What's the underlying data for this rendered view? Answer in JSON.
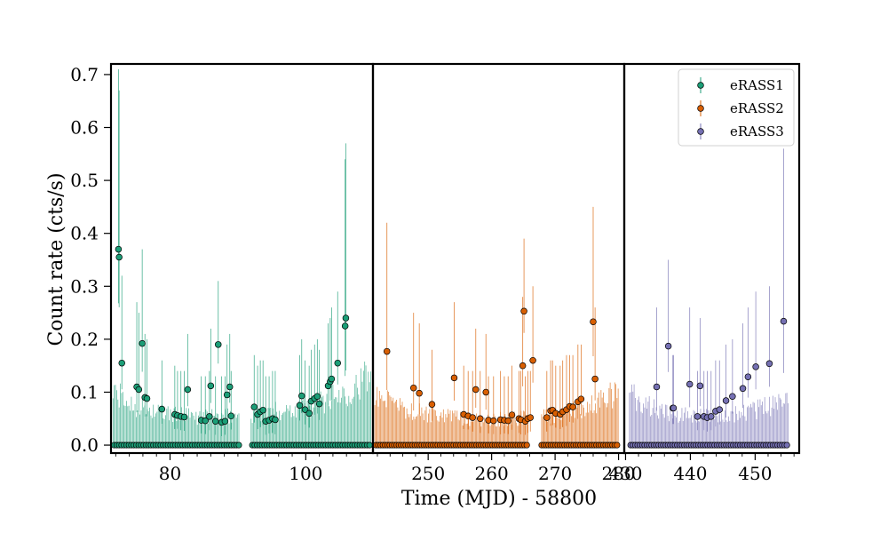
{
  "chart_data": {
    "type": "scatter",
    "title": "",
    "xlabel": "Time (MJD) - 58800",
    "ylabel": "Count rate (cts/s)",
    "ylim": [
      -0.015,
      0.72
    ],
    "yticks": [
      0.0,
      0.1,
      0.2,
      0.3,
      0.4,
      0.5,
      0.6,
      0.7
    ],
    "ytick_labels": [
      "0.0",
      "0.1",
      "0.2",
      "0.3",
      "0.4",
      "0.5",
      "0.6",
      "0.7"
    ],
    "legend": {
      "position": "top-right",
      "entries": [
        "eRASS1",
        "eRASS2",
        "eRASS3"
      ]
    },
    "panels": [
      {
        "series": "eRASS1",
        "color": "#1b9e77",
        "xlim": [
          71.3,
          109.9
        ],
        "xticks": [
          80,
          100
        ],
        "xtick_labels": [
          "80",
          "100"
        ],
        "err_env": [
          [
            72.0,
            0.125
          ],
          [
            74.0,
            0.1
          ],
          [
            77.0,
            0.085
          ],
          [
            80.0,
            0.075
          ],
          [
            83.0,
            0.07
          ],
          [
            86.0,
            0.068
          ],
          [
            89.0,
            0.07
          ],
          [
            92.0,
            0.075
          ],
          [
            95.0,
            0.08
          ],
          [
            98.0,
            0.09
          ],
          [
            101.0,
            0.1
          ],
          [
            104.0,
            0.115
          ],
          [
            107.0,
            0.14
          ],
          [
            109.0,
            0.165
          ]
        ],
        "zero_gaps": [
          [
            90.3,
            91.9
          ]
        ],
        "points": [
          [
            72.4,
            0.37,
            0.71
          ],
          [
            72.5,
            0.355,
            0.67
          ],
          [
            72.9,
            0.155,
            0.32
          ],
          [
            75.1,
            0.11,
            0.27
          ],
          [
            75.4,
            0.105,
            0.25
          ],
          [
            75.9,
            0.192,
            0.37
          ],
          [
            76.3,
            0.09,
            0.21
          ],
          [
            76.6,
            0.088,
            0.2
          ],
          [
            78.8,
            0.068,
            0.16
          ],
          [
            80.7,
            0.058,
            0.15
          ],
          [
            81.1,
            0.056,
            0.14
          ],
          [
            81.6,
            0.054,
            0.14
          ],
          [
            82.1,
            0.053,
            0.14
          ],
          [
            82.6,
            0.105,
            0.21
          ],
          [
            84.6,
            0.047,
            0.13
          ],
          [
            85.2,
            0.046,
            0.13
          ],
          [
            85.8,
            0.054,
            0.14
          ],
          [
            86.0,
            0.112,
            0.22
          ],
          [
            86.7,
            0.045,
            0.13
          ],
          [
            87.1,
            0.19,
            0.31
          ],
          [
            87.6,
            0.043,
            0.13
          ],
          [
            88.1,
            0.045,
            0.13
          ],
          [
            88.4,
            0.095,
            0.19
          ],
          [
            88.8,
            0.11,
            0.21
          ],
          [
            89.0,
            0.055,
            0.14
          ],
          [
            92.4,
            0.072,
            0.17
          ],
          [
            92.9,
            0.058,
            0.15
          ],
          [
            93.3,
            0.063,
            0.16
          ],
          [
            93.7,
            0.066,
            0.16
          ],
          [
            94.1,
            0.045,
            0.13
          ],
          [
            94.6,
            0.047,
            0.13
          ],
          [
            95.1,
            0.05,
            0.14
          ],
          [
            95.5,
            0.048,
            0.14
          ],
          [
            99.1,
            0.075,
            0.17
          ],
          [
            99.4,
            0.093,
            0.2
          ],
          [
            99.9,
            0.067,
            0.16
          ],
          [
            100.5,
            0.06,
            0.15
          ],
          [
            100.8,
            0.083,
            0.18
          ],
          [
            101.3,
            0.088,
            0.19
          ],
          [
            101.7,
            0.092,
            0.2
          ],
          [
            102.0,
            0.078,
            0.18
          ],
          [
            103.3,
            0.112,
            0.23
          ],
          [
            103.6,
            0.12,
            0.24
          ],
          [
            103.8,
            0.125,
            0.26
          ],
          [
            104.7,
            0.155,
            0.29
          ],
          [
            105.8,
            0.225,
            0.54
          ],
          [
            105.9,
            0.24,
            0.57
          ]
        ]
      },
      {
        "series": "eRASS2",
        "color": "#d95f02",
        "xlim": [
          241.3,
          280.9
        ],
        "xticks": [
          250,
          260,
          270,
          280
        ],
        "xtick_labels": [
          "250",
          "260",
          "270",
          "280"
        ],
        "err_env": [
          [
            242.0,
            0.125
          ],
          [
            244.0,
            0.1
          ],
          [
            247.0,
            0.085
          ],
          [
            250.0,
            0.075
          ],
          [
            253.0,
            0.07
          ],
          [
            256.0,
            0.065
          ],
          [
            259.0,
            0.063
          ],
          [
            262.0,
            0.063
          ],
          [
            265.0,
            0.065
          ],
          [
            268.0,
            0.07
          ],
          [
            271.0,
            0.078
          ],
          [
            274.0,
            0.09
          ],
          [
            277.0,
            0.105
          ],
          [
            279.5,
            0.125
          ]
        ],
        "zero_gaps": [
          [
            265.8,
            267.8
          ]
        ],
        "points": [
          [
            243.5,
            0.177,
            0.42
          ],
          [
            247.7,
            0.108,
            0.25
          ],
          [
            248.6,
            0.098,
            0.23
          ],
          [
            250.6,
            0.077,
            0.18
          ],
          [
            254.1,
            0.127,
            0.27
          ],
          [
            255.6,
            0.058,
            0.15
          ],
          [
            256.3,
            0.055,
            0.14
          ],
          [
            257.0,
            0.052,
            0.14
          ],
          [
            257.5,
            0.105,
            0.22
          ],
          [
            258.2,
            0.05,
            0.14
          ],
          [
            259.1,
            0.1,
            0.21
          ],
          [
            259.5,
            0.047,
            0.13
          ],
          [
            260.3,
            0.046,
            0.13
          ],
          [
            261.4,
            0.048,
            0.14
          ],
          [
            262.0,
            0.047,
            0.13
          ],
          [
            262.6,
            0.046,
            0.13
          ],
          [
            263.2,
            0.057,
            0.15
          ],
          [
            264.3,
            0.05,
            0.14
          ],
          [
            264.6,
            0.048,
            0.14
          ],
          [
            264.9,
            0.15,
            0.28
          ],
          [
            265.1,
            0.253,
            0.39
          ],
          [
            265.3,
            0.045,
            0.13
          ],
          [
            265.7,
            0.05,
            0.14
          ],
          [
            266.1,
            0.052,
            0.14
          ],
          [
            266.5,
            0.16,
            0.3
          ],
          [
            268.7,
            0.052,
            0.14
          ],
          [
            269.3,
            0.065,
            0.16
          ],
          [
            269.6,
            0.066,
            0.16
          ],
          [
            270.1,
            0.06,
            0.15
          ],
          [
            270.8,
            0.058,
            0.15
          ],
          [
            271.2,
            0.063,
            0.16
          ],
          [
            271.8,
            0.067,
            0.17
          ],
          [
            272.3,
            0.073,
            0.17
          ],
          [
            272.8,
            0.072,
            0.17
          ],
          [
            273.6,
            0.082,
            0.19
          ],
          [
            274.1,
            0.087,
            0.19
          ],
          [
            276.0,
            0.233,
            0.45
          ],
          [
            276.3,
            0.125,
            0.26
          ]
        ]
      },
      {
        "series": "eRASS3",
        "color": "#7570b3",
        "xlim": [
          429.8,
          456.8
        ],
        "xticks": [
          430,
          440,
          450
        ],
        "xtick_labels": [
          "430",
          "440",
          "450"
        ],
        "err_env": [
          [
            431.0,
            0.125
          ],
          [
            433.0,
            0.1
          ],
          [
            435.0,
            0.085
          ],
          [
            437.5,
            0.075
          ],
          [
            440.0,
            0.07
          ],
          [
            442.5,
            0.07
          ],
          [
            445.0,
            0.072
          ],
          [
            447.5,
            0.078
          ],
          [
            450.0,
            0.085
          ],
          [
            452.5,
            0.095
          ],
          [
            454.5,
            0.105
          ]
        ],
        "zero_gaps": [],
        "points": [
          [
            434.8,
            0.11,
            0.26
          ],
          [
            436.6,
            0.187,
            0.35
          ],
          [
            437.3,
            0.07,
            0.17
          ],
          [
            437.4,
            0.07,
            0.17
          ],
          [
            439.9,
            0.115,
            0.26
          ],
          [
            441.1,
            0.054,
            0.14
          ],
          [
            441.5,
            0.112,
            0.24
          ],
          [
            442.1,
            0.054,
            0.14
          ],
          [
            442.6,
            0.052,
            0.14
          ],
          [
            443.2,
            0.054,
            0.14
          ],
          [
            443.9,
            0.064,
            0.16
          ],
          [
            444.5,
            0.067,
            0.16
          ],
          [
            445.5,
            0.084,
            0.19
          ],
          [
            446.5,
            0.092,
            0.2
          ],
          [
            448.1,
            0.107,
            0.23
          ],
          [
            448.9,
            0.129,
            0.26
          ],
          [
            450.1,
            0.148,
            0.29
          ],
          [
            452.2,
            0.154,
            0.3
          ],
          [
            454.4,
            0.234,
            0.56
          ]
        ]
      }
    ]
  }
}
